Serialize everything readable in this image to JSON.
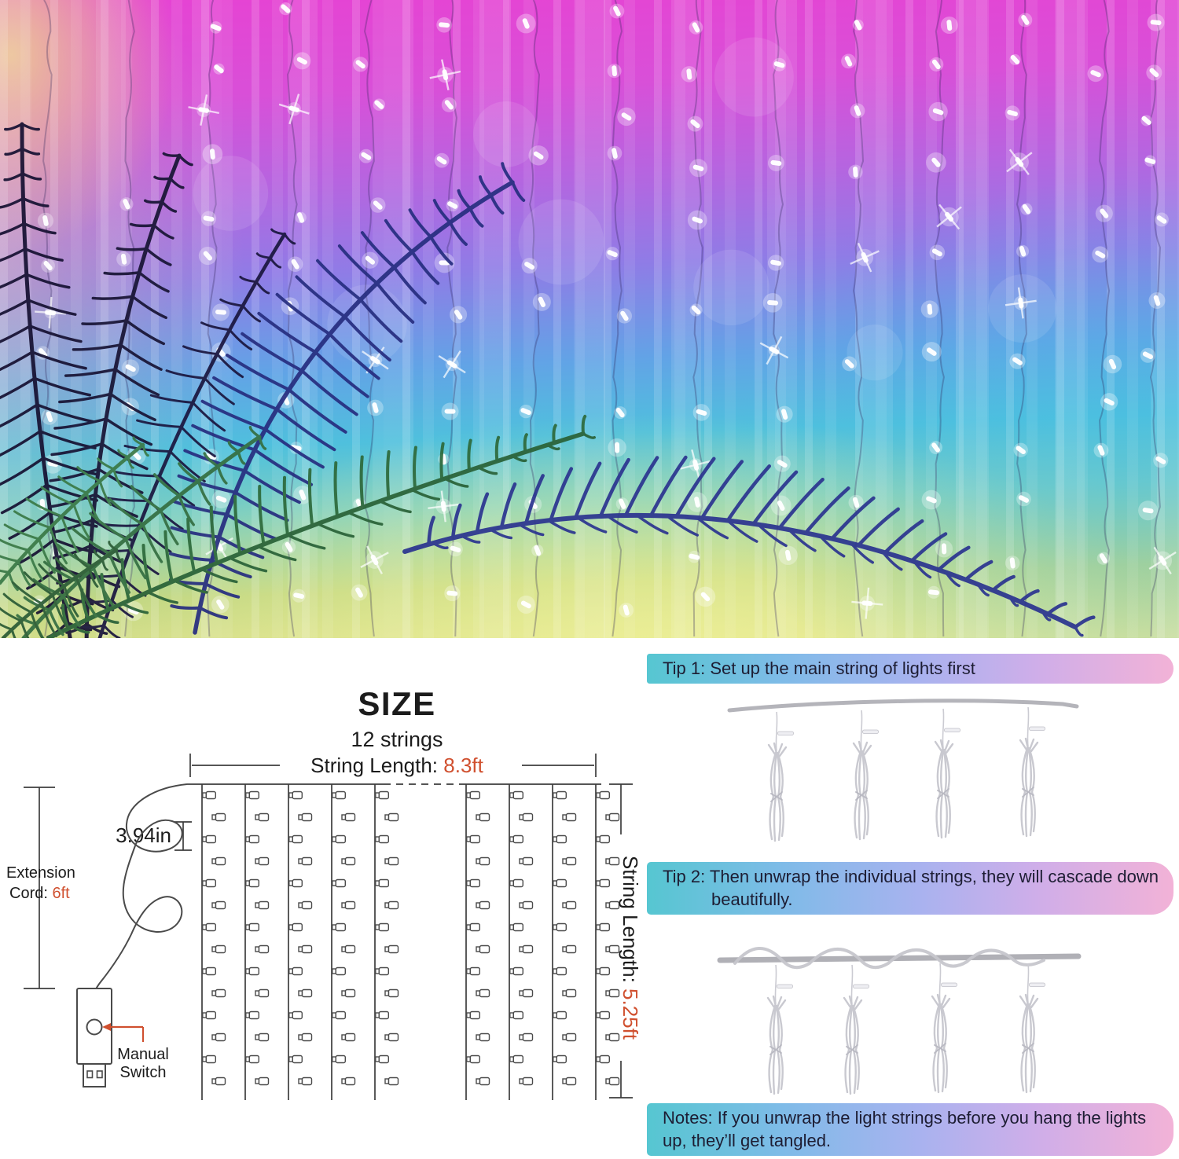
{
  "size_section": {
    "title": "SIZE",
    "subtitle": "12 strings",
    "top_dim_label": "String Length: ",
    "top_dim_value": "8.3ft",
    "drop_spacing_value": "3.94in",
    "extension_line1": "Extension",
    "extension_line2": "Cord: ",
    "extension_value": "6ft",
    "switch_line1": "Manual",
    "switch_line2": "Switch",
    "side_dim_label": "String Length: ",
    "side_dim_value": "5.25ft"
  },
  "tips": {
    "tip1": "Tip 1: Set up the main string of lights first",
    "tip2": "Tip 2: Then unwrap the individual strings, they will cascade down beautifully.",
    "notes": "Notes: If you unwrap the light strings before you hang the lights up, they’ll get tangled."
  },
  "colors": {
    "accent_orange": "#d0502f",
    "banner_teal": "#56c6d1",
    "banner_blue": "#a9b2ef",
    "banner_pink": "#f2b2d7",
    "diagram_line": "#3d3d3d",
    "photo_top_pink": "#e643d3",
    "photo_mid_blue": "#62a3e6",
    "photo_bottom_yellow": "#e4e592"
  }
}
